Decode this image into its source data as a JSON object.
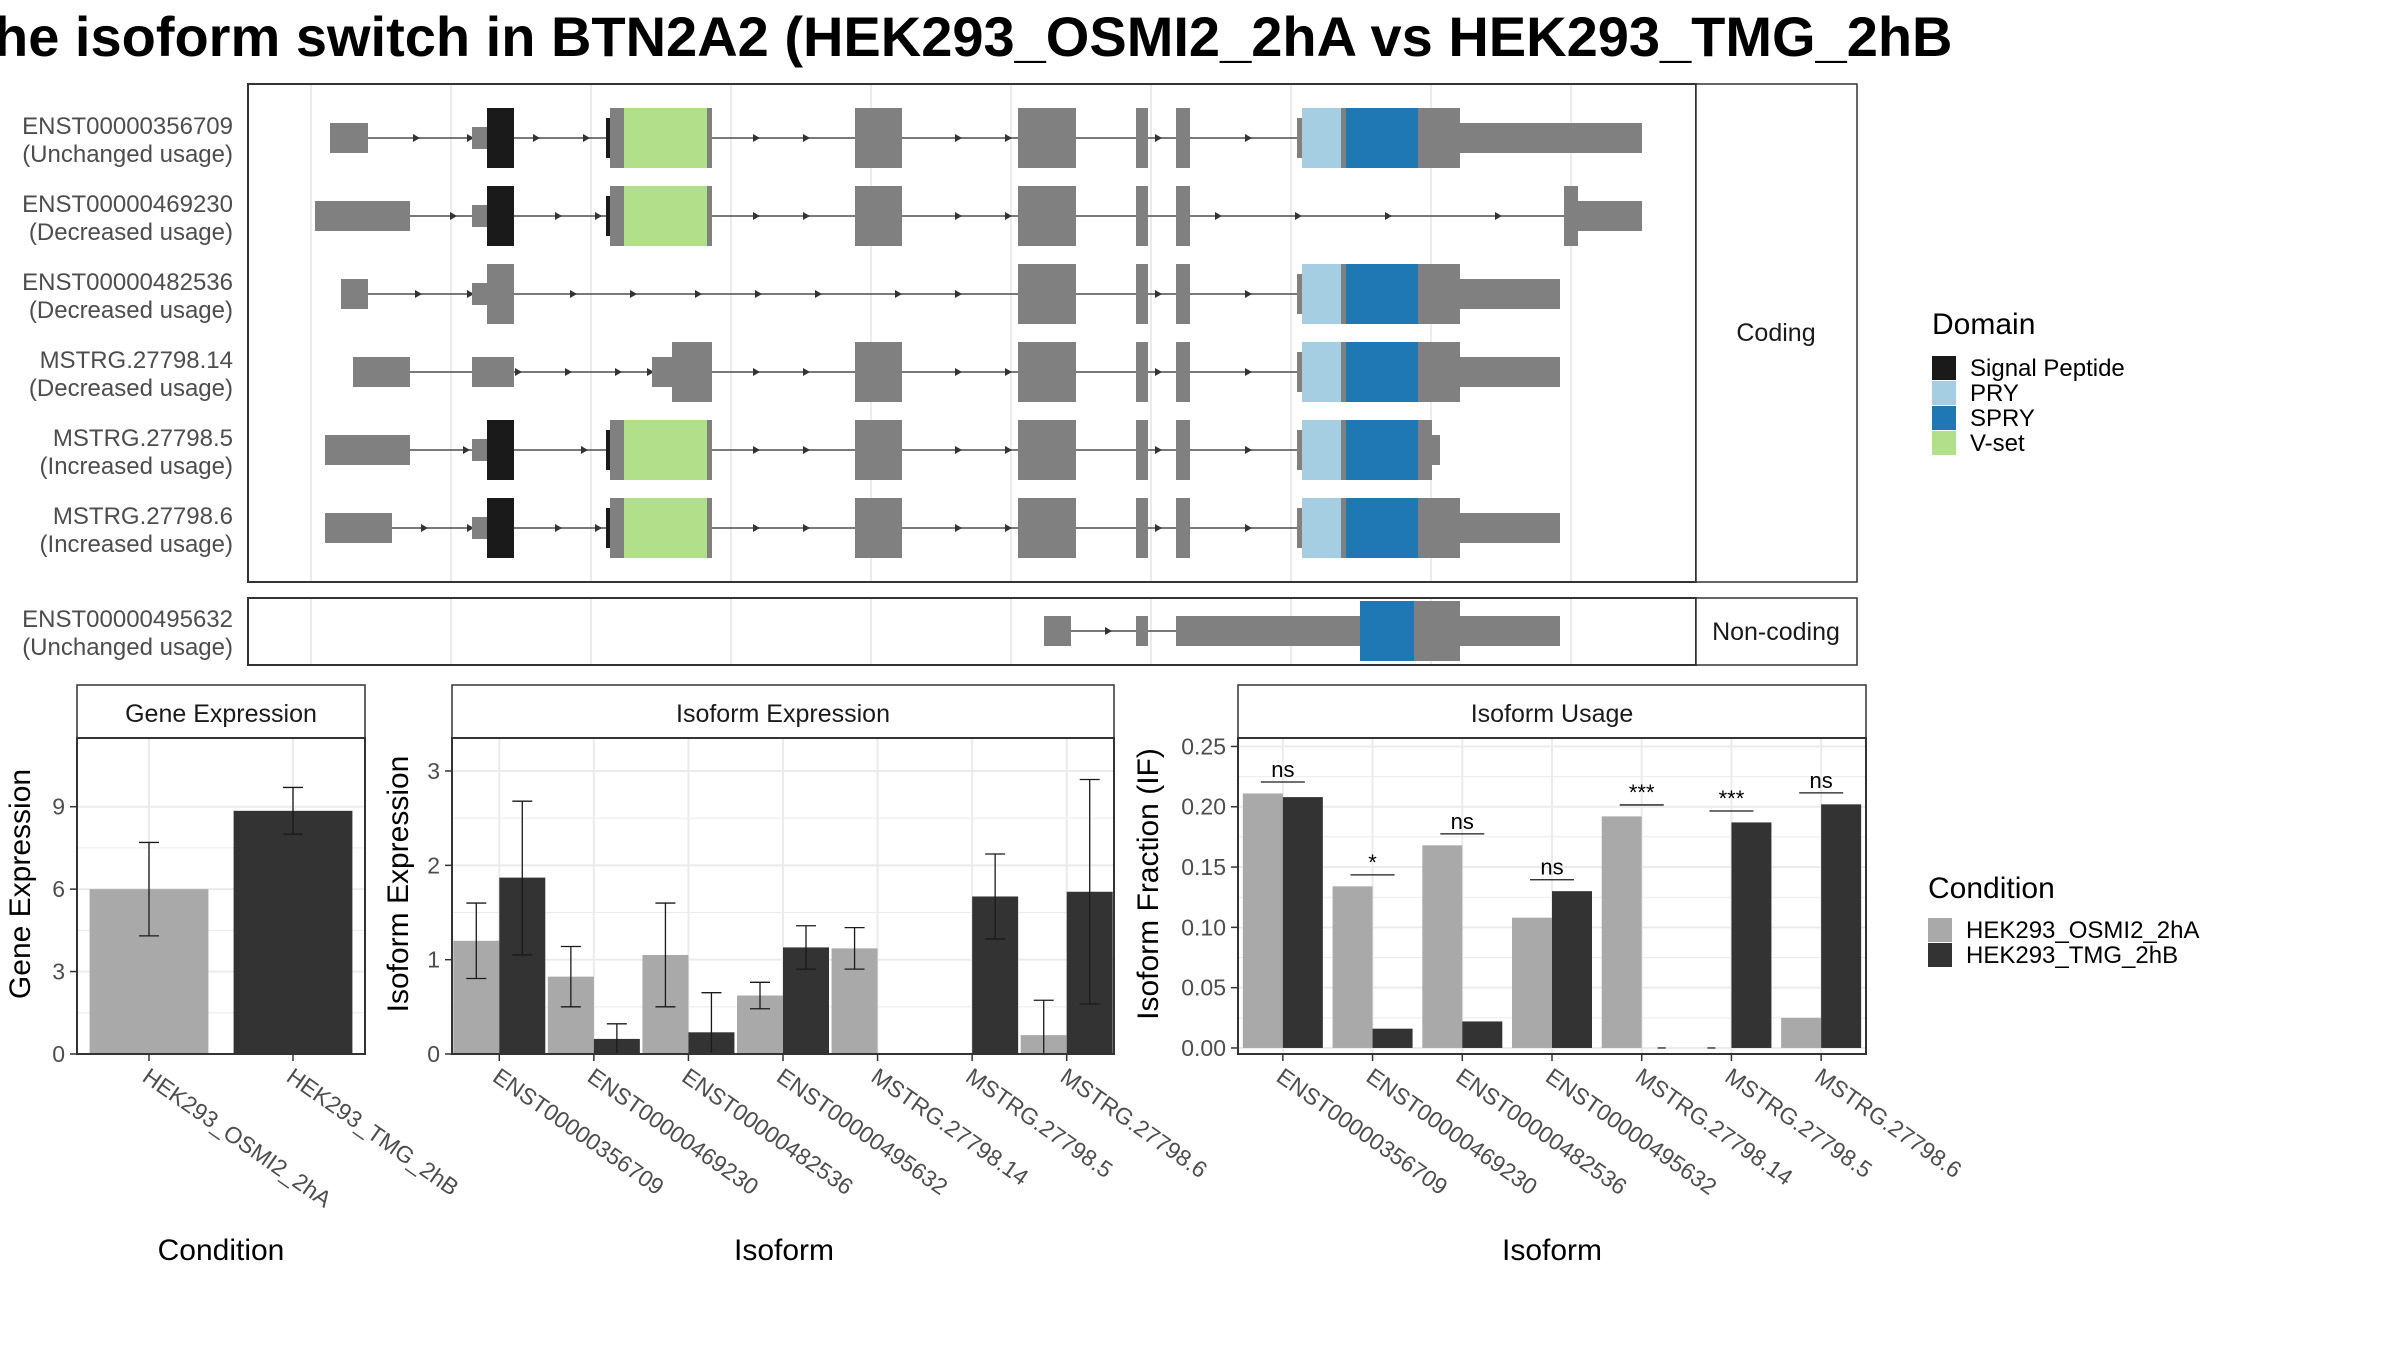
{
  "title": "he isoform switch in BTN2A2 (HEK293_OSMI2_2hA vs HEK293_TMG_2hB",
  "colors": {
    "exon": "#808080",
    "signal_peptide": "#1a1a1a",
    "pry": "#a6cee3",
    "spry": "#1f78b4",
    "vset": "#b2df8a",
    "cond_a": "#a9a9a9",
    "cond_b": "#333333",
    "grid": "#ebebeb",
    "strip": "#ffffff",
    "border": "#333333"
  },
  "structure": {
    "facets": [
      {
        "label": "Coding",
        "transcripts": [
          {
            "id": "ENST00000356709",
            "usage": "(Unchanged usage)"
          },
          {
            "id": "ENST00000469230",
            "usage": "(Decreased usage)"
          },
          {
            "id": "ENST00000482536",
            "usage": "(Decreased usage)"
          },
          {
            "id": "MSTRG.27798.14",
            "usage": "(Decreased usage)"
          },
          {
            "id": "MSTRG.27798.5",
            "usage": "(Increased usage)"
          },
          {
            "id": "MSTRG.27798.6",
            "usage": "(Increased usage)"
          }
        ]
      },
      {
        "label": "Non-coding",
        "transcripts": [
          {
            "id": "ENST00000495632",
            "usage": "(Unchanged usage)"
          }
        ]
      }
    ]
  },
  "domain_legend": {
    "title": "Domain",
    "items": [
      {
        "label": "Signal Peptide",
        "color": "#1a1a1a"
      },
      {
        "label": "PRY",
        "color": "#a6cee3"
      },
      {
        "label": "SPRY",
        "color": "#1f78b4"
      },
      {
        "label": "V-set",
        "color": "#b2df8a"
      }
    ]
  },
  "condition_legend": {
    "title": "Condition",
    "items": [
      {
        "label": "HEK293_OSMI2_2hA",
        "color": "#a9a9a9"
      },
      {
        "label": "HEK293_TMG_2hB",
        "color": "#333333"
      }
    ]
  },
  "chart_data": [
    {
      "type": "bar",
      "title": "Gene Expression",
      "xlabel": "Condition",
      "ylabel": "Gene Expression",
      "ylim": [
        0,
        11.5
      ],
      "yticks": [
        0,
        3,
        6,
        9
      ],
      "ytick_labels": [
        "0",
        "3",
        "6",
        "9"
      ],
      "categories": [
        "HEK293_OSMI2_2hA",
        "HEK293_TMG_2hB"
      ],
      "values": [
        6.0,
        8.85
      ],
      "error_low": [
        4.3,
        8.0
      ],
      "error_high": [
        7.7,
        9.7
      ]
    },
    {
      "type": "bar",
      "title": "Isoform Expression",
      "xlabel": "Isoform",
      "ylabel": "Isoform Expression",
      "ylim": [
        0,
        3.35
      ],
      "yticks": [
        0,
        1,
        2,
        3
      ],
      "ytick_labels": [
        "0",
        "1",
        "2",
        "3"
      ],
      "categories": [
        "ENST00000356709",
        "ENST00000469230",
        "ENST00000482536",
        "ENST00000495632",
        "MSTRG.27798.14",
        "MSTRG.27798.5",
        "MSTRG.27798.6"
      ],
      "series": [
        {
          "name": "HEK293_OSMI2_2hA",
          "values": [
            1.2,
            0.82,
            1.05,
            0.62,
            1.12,
            0.0,
            0.2
          ],
          "error_low": [
            0.8,
            0.5,
            0.5,
            0.48,
            0.9,
            0.0,
            0.0
          ],
          "error_high": [
            1.6,
            1.14,
            1.6,
            0.76,
            1.34,
            0.0,
            0.57
          ]
        },
        {
          "name": "HEK293_TMG_2hB",
          "values": [
            1.87,
            0.16,
            0.23,
            1.13,
            0.0,
            1.67,
            1.72
          ],
          "error_low": [
            1.05,
            0.0,
            0.0,
            0.9,
            0.0,
            1.22,
            0.53
          ],
          "error_high": [
            2.68,
            0.32,
            0.65,
            1.36,
            0.0,
            2.12,
            2.91
          ]
        }
      ]
    },
    {
      "type": "bar",
      "title": "Isoform Usage",
      "xlabel": "Isoform",
      "ylabel": "Isoform Fraction (IF)",
      "ylim": [
        -0.005,
        0.257
      ],
      "yticks": [
        0,
        0.05,
        0.1,
        0.15,
        0.2,
        0.25
      ],
      "ytick_labels": [
        "0.00",
        "0.05",
        "0.10",
        "0.15",
        "0.20",
        "0.25"
      ],
      "categories": [
        "ENST00000356709",
        "ENST00000469230",
        "ENST00000482536",
        "ENST00000495632",
        "MSTRG.27798.14",
        "MSTRG.27798.5",
        "MSTRG.27798.6"
      ],
      "series": [
        {
          "name": "HEK293_OSMI2_2hA",
          "values": [
            0.211,
            0.134,
            0.168,
            0.108,
            0.192,
            0.0,
            0.025
          ]
        },
        {
          "name": "HEK293_TMG_2hB",
          "values": [
            0.208,
            0.016,
            0.022,
            0.13,
            0.0,
            0.187,
            0.202
          ]
        }
      ],
      "significance": [
        "ns",
        "*",
        "ns",
        "ns",
        "***",
        "***",
        "ns"
      ]
    }
  ]
}
